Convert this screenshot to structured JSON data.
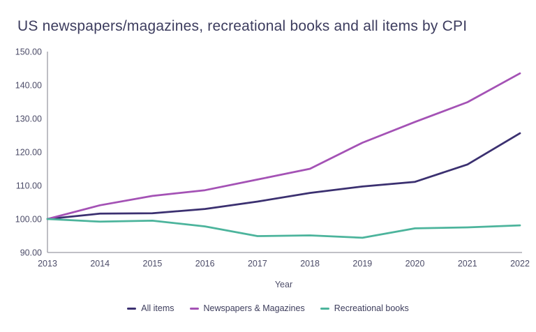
{
  "title": "US newspapers/magazines, recreational books and all items by CPI",
  "colors": {
    "title_text": "#3c3c5e",
    "tick_text": "#4c4c68",
    "axis_line": "#9b9ba4",
    "background": "#ffffff"
  },
  "chart_data": {
    "type": "line",
    "x": [
      2013,
      2014,
      2015,
      2016,
      2017,
      2018,
      2019,
      2020,
      2021,
      2022
    ],
    "series": [
      {
        "name": "All items",
        "color": "#3b3070",
        "values": [
          100.0,
          101.6,
          101.7,
          103.0,
          105.2,
          107.8,
          109.7,
          111.1,
          116.3,
          125.6
        ]
      },
      {
        "name": "Newspapers & Magazines",
        "color": "#a452b5",
        "values": [
          100.0,
          104.1,
          106.9,
          108.6,
          111.8,
          115.0,
          122.8,
          129.0,
          134.9,
          143.5
        ]
      },
      {
        "name": "Recreational books",
        "color": "#4cb49c",
        "values": [
          100.0,
          99.2,
          99.5,
          97.8,
          94.9,
          95.1,
          94.4,
          97.2,
          97.5,
          98.1
        ]
      }
    ],
    "xlabel": "Year",
    "ylabel": "",
    "ylim": [
      90,
      150
    ],
    "yticks": [
      90,
      100,
      110,
      120,
      130,
      140,
      150
    ],
    "ytick_labels": [
      "90.00",
      "100.00",
      "110.00",
      "120.00",
      "130.00",
      "140.00",
      "150.00"
    ],
    "grid": false,
    "legend_position": "bottom-center"
  }
}
